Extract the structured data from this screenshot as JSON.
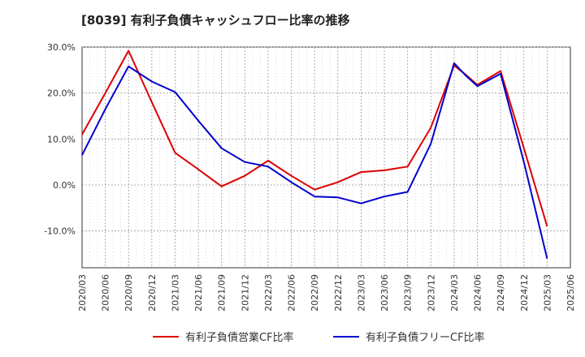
{
  "title": "[8039]  有利子負債キャッシュフロー比率の推移",
  "chart_data": {
    "type": "line",
    "title": "[8039]  有利子負債キャッシュフロー比率の推移",
    "xlabel": "",
    "ylabel": "",
    "ylim": [
      -18,
      30
    ],
    "grid": true,
    "legend_position": "bottom",
    "yticks": [
      "30.0%",
      "20.0%",
      "10.0%",
      "0.0%",
      "-10.0%"
    ],
    "ytick_values": [
      30,
      20,
      10,
      0,
      -10
    ],
    "x": [
      "2020/03",
      "2020/06",
      "2020/09",
      "2020/12",
      "2021/03",
      "2021/06",
      "2021/09",
      "2021/12",
      "2022/03",
      "2022/06",
      "2022/09",
      "2022/12",
      "2023/03",
      "2023/06",
      "2023/09",
      "2023/12",
      "2024/03",
      "2024/06",
      "2024/09",
      "2024/12",
      "2025/03",
      "2025/06"
    ],
    "series": [
      {
        "name": "有利子負債営業CF比率",
        "color": "#dd0000",
        "values": [
          11.0,
          20.0,
          29.2,
          18.0,
          7.0,
          3.4,
          -0.3,
          2.0,
          5.3,
          2.0,
          -1.0,
          0.6,
          2.8,
          3.2,
          4.0,
          12.5,
          26.0,
          21.8,
          24.8,
          8.0,
          -9.0,
          null
        ],
        "extra": {
          "index": 16.5,
          "value": 24.0
        }
      },
      {
        "name": "有利子負債フリーCF比率",
        "color": "#0000cc",
        "values": [
          6.5,
          16.5,
          25.8,
          22.5,
          20.2,
          14.0,
          8.0,
          5.0,
          4.0,
          0.6,
          -2.5,
          -2.7,
          -4.0,
          -2.5,
          -1.5,
          9.0,
          26.5,
          21.5,
          24.2,
          5.0,
          -16.0,
          null
        ],
        "extra": {
          "index": 16.5,
          "value": 23.8
        }
      }
    ]
  }
}
